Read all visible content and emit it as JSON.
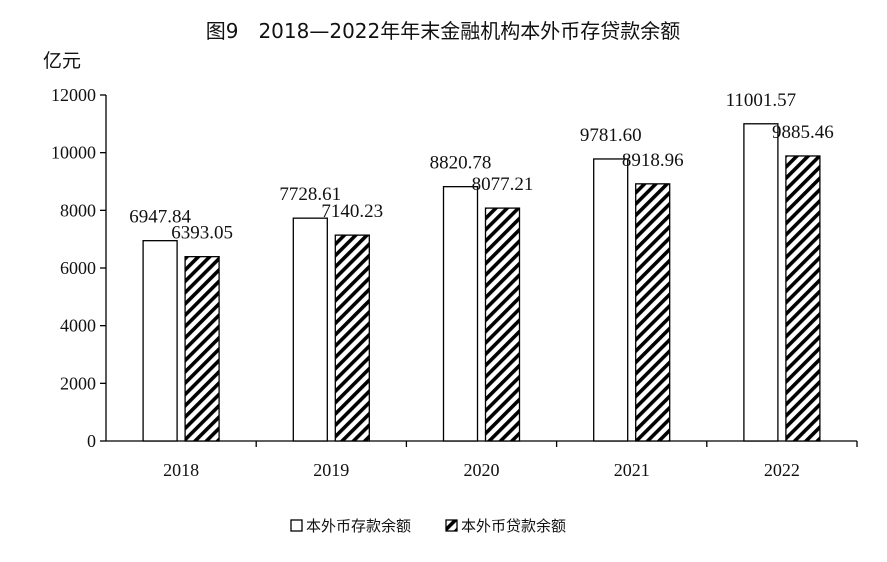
{
  "chart_data": {
    "type": "bar",
    "title": "图9　2018—2022年年末金融机构本外币存贷款余额",
    "ylabel": "亿元",
    "xlabel": "",
    "categories": [
      "2018",
      "2019",
      "2020",
      "2021",
      "2022"
    ],
    "series": [
      {
        "name": "本外币存款余额",
        "values": [
          6947.84,
          7728.61,
          8820.78,
          9781.6,
          11001.57
        ],
        "labels": [
          "6947.84",
          "7728.61",
          "8820.78",
          "9781.60",
          "11001.57"
        ],
        "fill": "#ffffff",
        "pattern": "none"
      },
      {
        "name": "本外币贷款余额",
        "values": [
          6393.05,
          7140.23,
          8077.21,
          8918.96,
          9885.46
        ],
        "labels": [
          "6393.05",
          "7140.23",
          "8077.21",
          "8918.96",
          "9885.46"
        ],
        "fill": "#ffffff",
        "pattern": "diagonal-hatch"
      }
    ],
    "ylim": [
      0,
      12000
    ],
    "yticks": [
      "0",
      "2000",
      "4000",
      "6000",
      "8000",
      "10000",
      "12000"
    ],
    "grid": false,
    "legend_position": "bottom-center",
    "colors": {
      "bar_stroke": "#000000",
      "hatch": "#000000",
      "axis": "#000000"
    }
  }
}
